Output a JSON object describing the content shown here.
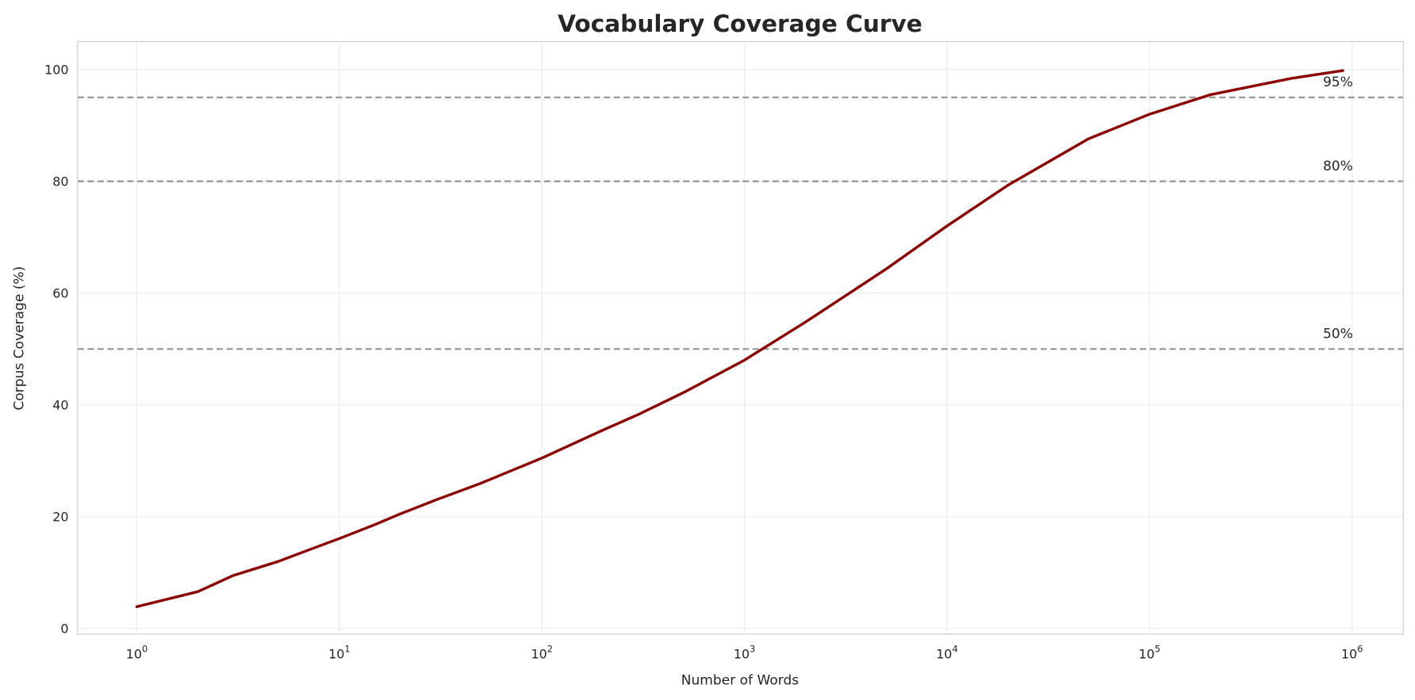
{
  "chart_data": {
    "type": "line",
    "title": "Vocabulary Coverage Curve",
    "xlabel": "Number of Words",
    "ylabel": "Corpus Coverage (%)",
    "xscale": "log",
    "xlim": [
      0.51,
      1790000
    ],
    "ylim": [
      -1,
      105
    ],
    "grid": true,
    "x_ticks": [
      1,
      10,
      100,
      1000,
      10000,
      100000,
      1000000
    ],
    "x_tick_labels": [
      [
        "10",
        "0"
      ],
      [
        "10",
        "1"
      ],
      [
        "10",
        "2"
      ],
      [
        "10",
        "3"
      ],
      [
        "10",
        "4"
      ],
      [
        "10",
        "5"
      ],
      [
        "10",
        "6"
      ]
    ],
    "y_ticks": [
      0,
      20,
      40,
      60,
      80,
      100
    ],
    "y_tick_labels": [
      "0",
      "20",
      "40",
      "60",
      "80",
      "100"
    ],
    "series": [
      {
        "color": "#8b0000",
        "x": [
          1,
          2,
          3,
          5,
          7,
          10,
          15,
          20,
          30,
          50,
          100,
          200,
          300,
          500,
          1000,
          2000,
          5000,
          10000,
          20000,
          50000,
          100000,
          200000,
          500000,
          900000
        ],
        "y": [
          3.9,
          6.6,
          9.5,
          12.0,
          14.0,
          16.1,
          18.6,
          20.5,
          23.0,
          26.0,
          30.5,
          35.5,
          38.3,
          42.2,
          48.0,
          54.8,
          64.3,
          72.0,
          79.3,
          87.6,
          92.0,
          95.5,
          98.4,
          99.8
        ]
      }
    ],
    "reference_lines": [
      {
        "y": 95,
        "label": "95%",
        "color": "#999999"
      },
      {
        "y": 80,
        "label": "80%",
        "color": "#999999"
      },
      {
        "y": 50,
        "label": "50%",
        "color": "#999999"
      }
    ]
  }
}
